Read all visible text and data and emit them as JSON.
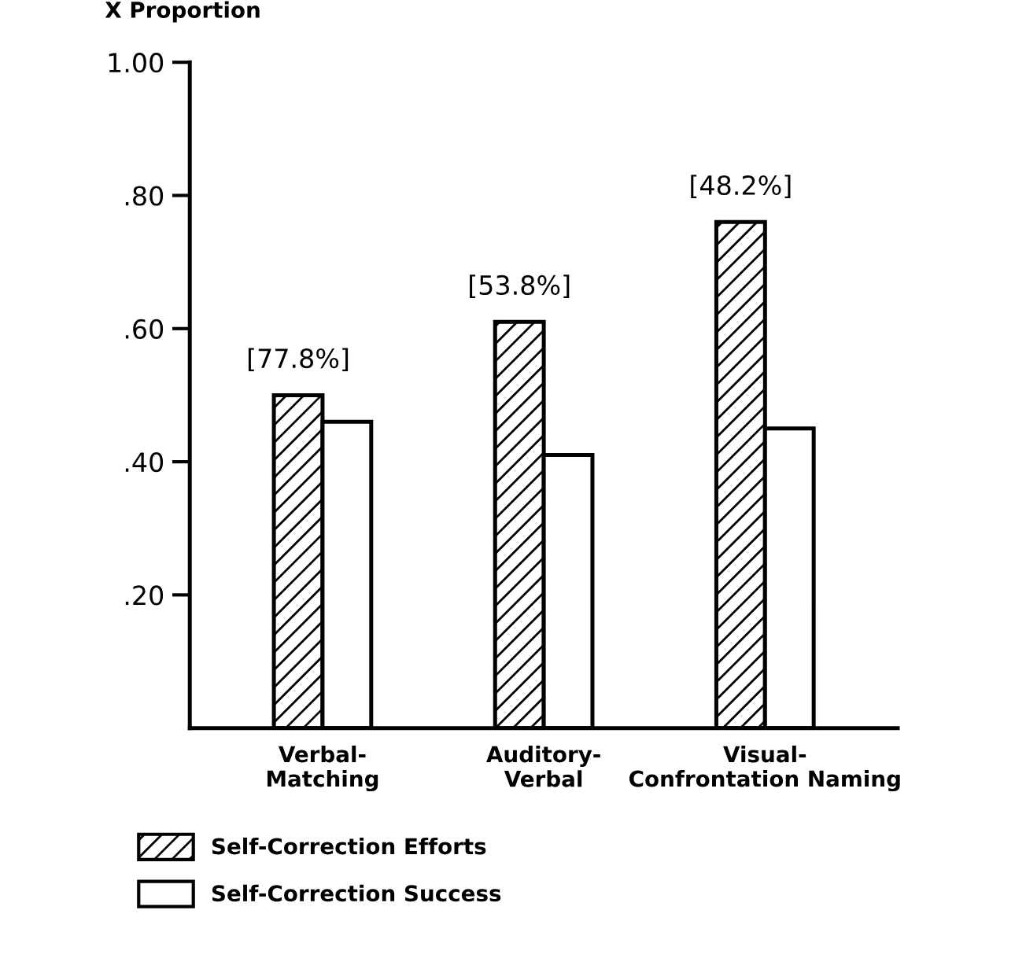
{
  "chart_data": {
    "type": "bar",
    "ylabel": "X Proportion",
    "categories": [
      "Verbal-\nMatching",
      "Auditory-\nVerbal",
      "Visual-\nConfrontation Naming"
    ],
    "series": [
      {
        "name": "Self-Correction Efforts",
        "color": "#000000",
        "values": [
          0.5,
          0.61,
          0.76
        ]
      },
      {
        "name": "Self-Correction Success",
        "color": "#ffffff",
        "values": [
          0.46,
          0.41,
          0.45
        ]
      }
    ],
    "ylim": [
      0,
      1.0
    ],
    "yticks": [
      {
        "value": 0.2,
        "label": ".20"
      },
      {
        "value": 0.4,
        "label": ".40"
      },
      {
        "value": 0.6,
        "label": ".60"
      },
      {
        "value": 0.8,
        "label": ".80"
      },
      {
        "value": 1.0,
        "label": "1.00"
      }
    ],
    "annotations": [
      {
        "text": "[77.8%]",
        "x": "Verbal-\nMatching",
        "y": 0.5
      },
      {
        "text": "[53.8%]",
        "x": "Auditory-\nVerbal",
        "y": 0.61
      },
      {
        "text": "[48.2%]",
        "x": "Visual-\nConfrontation Naming",
        "y": 0.76
      }
    ],
    "grid": false,
    "legend": "bottom left"
  }
}
